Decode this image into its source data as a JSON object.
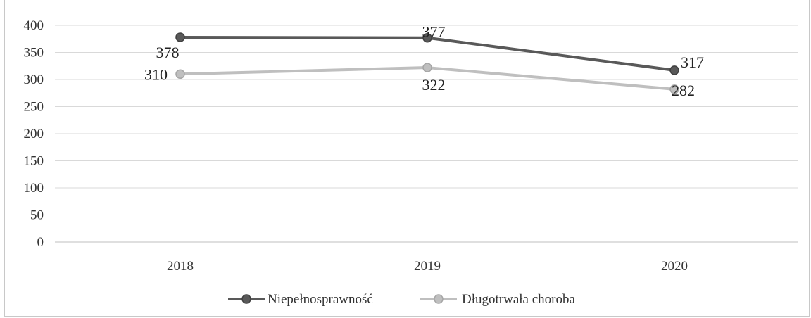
{
  "chart_data": {
    "type": "line",
    "categories": [
      "2018",
      "2019",
      "2020"
    ],
    "series": [
      {
        "name": "Niepełnosprawność",
        "values": [
          378,
          377,
          317
        ],
        "color": "#595959"
      },
      {
        "name": "Długotrwała choroba",
        "values": [
          310,
          322,
          282
        ],
        "color": "#bfbfbf"
      }
    ],
    "ylim": [
      0,
      400
    ],
    "yticks": [
      "0",
      "50",
      "100",
      "150",
      "200",
      "250",
      "300",
      "350",
      "400"
    ],
    "xlabel": "",
    "ylabel": "",
    "title": "",
    "grid": true,
    "legend": "bottom-center"
  }
}
